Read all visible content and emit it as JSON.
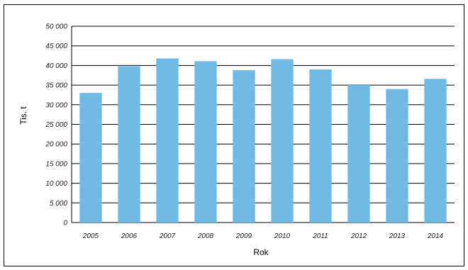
{
  "chart_data": {
    "type": "bar",
    "title": "",
    "xlabel": "Rok",
    "ylabel": "Tis. t",
    "categories": [
      "2005",
      "2006",
      "2007",
      "2008",
      "2009",
      "2010",
      "2011",
      "2012",
      "2013",
      "2014"
    ],
    "values": [
      33000,
      39800,
      41800,
      41100,
      38800,
      41600,
      39000,
      35000,
      34000,
      36600
    ],
    "ylim": [
      0,
      50000
    ],
    "yticks": [
      0,
      5000,
      10000,
      15000,
      20000,
      25000,
      30000,
      35000,
      40000,
      45000,
      50000
    ],
    "ytick_labels": [
      "0",
      "5 000",
      "10 000",
      "15 000",
      "20 000",
      "25 000",
      "30 000",
      "35 000",
      "40 000",
      "45 000",
      "50 000"
    ],
    "grid": true,
    "bar_color": "#6fbbe6",
    "grid_color": "#000000"
  }
}
